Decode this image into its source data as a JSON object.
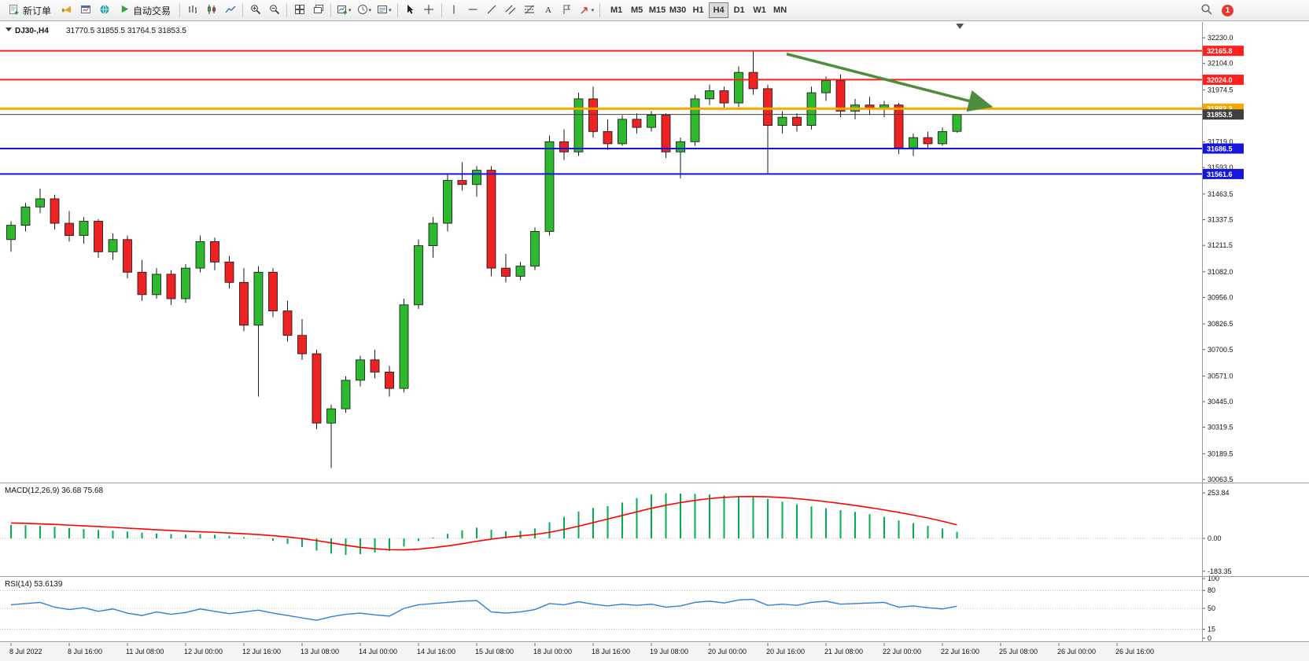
{
  "toolbar": {
    "new_order": "新订单",
    "auto_trading": "自动交易",
    "text_tool_label": "A",
    "timeframes": [
      "M1",
      "M5",
      "M15",
      "M30",
      "H1",
      "H4",
      "D1",
      "W1",
      "MN"
    ],
    "active_timeframe": "H4",
    "notification_count": "1"
  },
  "header": {
    "symbol": "DJ30-,H4",
    "ohlc": "31770.5 31855.5 31764.5 31853.5"
  },
  "chart_data": {
    "type": "candlestick",
    "symbol": "DJ30-",
    "timeframe": "H4",
    "colors": {
      "up": "#2eb82e",
      "down": "#ee2222",
      "wick": "#1a1a1a"
    },
    "y_ticks": [
      "32230.0",
      "32104.0",
      "31974.5",
      "31845.5",
      "31719.0",
      "31593.0",
      "31463.5",
      "31337.5",
      "31211.5",
      "31082.0",
      "30956.0",
      "30826.5",
      "30700.5",
      "30571.0",
      "30445.0",
      "30319.5",
      "30189.5",
      "30063.5"
    ],
    "x_labels": [
      "8 Jul 2022",
      "8 Jul 16:00",
      "11 Jul 08:00",
      "12 Jul 00:00",
      "12 Jul 16:00",
      "13 Jul 08:00",
      "14 Jul 00:00",
      "14 Jul 16:00",
      "15 Jul 08:00",
      "18 Jul 00:00",
      "18 Jul 16:00",
      "19 Jul 08:00",
      "20 Jul 00:00",
      "20 Jul 16:00",
      "21 Jul 08:00",
      "22 Jul 00:00",
      "22 Jul 16:00",
      "25 Jul 08:00",
      "26 Jul 00:00",
      "26 Jul 16:00"
    ],
    "candles_ohlc": [
      [
        31240,
        31330,
        31180,
        31310
      ],
      [
        31310,
        31420,
        31280,
        31400
      ],
      [
        31400,
        31490,
        31370,
        31440
      ],
      [
        31440,
        31460,
        31290,
        31320
      ],
      [
        31320,
        31380,
        31230,
        31260
      ],
      [
        31260,
        31350,
        31220,
        31330
      ],
      [
        31330,
        31340,
        31150,
        31180
      ],
      [
        31180,
        31270,
        31140,
        31240
      ],
      [
        31240,
        31260,
        31050,
        31080
      ],
      [
        31080,
        31140,
        30940,
        30970
      ],
      [
        30970,
        31100,
        30950,
        31070
      ],
      [
        31070,
        31090,
        30920,
        30950
      ],
      [
        30950,
        31120,
        30930,
        31100
      ],
      [
        31100,
        31260,
        31080,
        31230
      ],
      [
        31230,
        31250,
        31090,
        31130
      ],
      [
        31130,
        31160,
        31000,
        31030
      ],
      [
        31030,
        31100,
        30790,
        30820
      ],
      [
        30820,
        31110,
        30470,
        31080
      ],
      [
        31080,
        31100,
        30860,
        30890
      ],
      [
        30890,
        30940,
        30740,
        30770
      ],
      [
        30770,
        30850,
        30650,
        30680
      ],
      [
        30680,
        30700,
        30310,
        30340
      ],
      [
        30340,
        30430,
        30120,
        30410
      ],
      [
        30410,
        30570,
        30390,
        30550
      ],
      [
        30550,
        30670,
        30520,
        30650
      ],
      [
        30650,
        30700,
        30560,
        30590
      ],
      [
        30590,
        30620,
        30470,
        30510
      ],
      [
        30510,
        30950,
        30490,
        30920
      ],
      [
        30920,
        31240,
        30900,
        31210
      ],
      [
        31210,
        31350,
        31150,
        31320
      ],
      [
        31320,
        31560,
        31280,
        31530
      ],
      [
        31530,
        31620,
        31480,
        31510
      ],
      [
        31510,
        31600,
        31450,
        31580
      ],
      [
        31580,
        31600,
        31060,
        31100
      ],
      [
        31100,
        31170,
        31030,
        31060
      ],
      [
        31060,
        31130,
        31040,
        31110
      ],
      [
        31110,
        31300,
        31090,
        31280
      ],
      [
        31280,
        31750,
        31260,
        31720
      ],
      [
        31720,
        31780,
        31630,
        31670
      ],
      [
        31670,
        31960,
        31650,
        31930
      ],
      [
        31930,
        31990,
        31740,
        31770
      ],
      [
        31770,
        31830,
        31680,
        31710
      ],
      [
        31710,
        31850,
        31700,
        31830
      ],
      [
        31830,
        31860,
        31760,
        31790
      ],
      [
        31790,
        31870,
        31770,
        31850
      ],
      [
        31850,
        31860,
        31640,
        31670
      ],
      [
        31670,
        31740,
        31540,
        31720
      ],
      [
        31720,
        31950,
        31700,
        31930
      ],
      [
        31930,
        32000,
        31900,
        31970
      ],
      [
        31970,
        31990,
        31880,
        31910
      ],
      [
        31910,
        32090,
        31890,
        32060
      ],
      [
        32060,
        32165.8,
        31950,
        31980
      ],
      [
        31980,
        32000,
        31560,
        31800
      ],
      [
        31800,
        31870,
        31760,
        31840
      ],
      [
        31840,
        31860,
        31770,
        31800
      ],
      [
        31800,
        31990,
        31780,
        31960
      ],
      [
        31960,
        32040,
        31920,
        32020
      ],
      [
        32020,
        32050,
        31840,
        31870
      ],
      [
        31870,
        31930,
        31830,
        31900
      ],
      [
        31900,
        31940,
        31850,
        31880
      ],
      [
        31880,
        31920,
        31840,
        31900
      ],
      [
        31900,
        31910,
        31660,
        31690
      ],
      [
        31690,
        31760,
        31650,
        31740
      ],
      [
        31740,
        31770,
        31690,
        31710
      ],
      [
        31710,
        31790,
        31700,
        31770
      ],
      [
        31770.5,
        31855.5,
        31764.5,
        31853.5
      ]
    ],
    "hlines": [
      {
        "label": "32165.8",
        "value": 32165.8,
        "color": "#ff1f1f",
        "width": 2
      },
      {
        "label": "32024.0",
        "value": 32024.0,
        "color": "#ff1f1f",
        "width": 2
      },
      {
        "label": "31882.2",
        "value": 31882.2,
        "color": "#f5a800",
        "width": 3
      },
      {
        "label": "31853.5",
        "value": 31853.5,
        "color": "#3f3f3f",
        "width": 1,
        "role": "current-price"
      },
      {
        "label": "31686.5",
        "value": 31686.5,
        "color": "#1515dd",
        "width": 2
      },
      {
        "label": "31561.6",
        "value": 31561.6,
        "color": "#1515dd",
        "width": 2
      }
    ],
    "arrow": {
      "from_bar": 53.3,
      "from_price": 32150,
      "to_bar": 67.3,
      "to_price": 31893,
      "color": "#4e8d3c"
    },
    "macd": {
      "title": "MACD(12,26,9) 36.68 75.68",
      "y_labels": [
        "253.84",
        "0.00",
        "-183.35"
      ],
      "hist_color": "#00b050",
      "signal_color": "#ff0000",
      "histogram": [
        76,
        74,
        70,
        65,
        58,
        52,
        47,
        43,
        38,
        32,
        28,
        24,
        22,
        24,
        20,
        14,
        6,
        -2,
        -14,
        -30,
        -48,
        -68,
        -85,
        -92,
        -88,
        -78,
        -70,
        -45,
        -15,
        5,
        25,
        45,
        60,
        48,
        40,
        42,
        55,
        90,
        120,
        150,
        170,
        180,
        200,
        225,
        245,
        252,
        250,
        248,
        245,
        240,
        235,
        230,
        220,
        205,
        190,
        178,
        168,
        158,
        148,
        135,
        120,
        100,
        85,
        70,
        55,
        36.68
      ],
      "signal": [
        86,
        84,
        81,
        78,
        74,
        70,
        66,
        62,
        57,
        53,
        48,
        44,
        40,
        37,
        34,
        30,
        26,
        21,
        15,
        8,
        -1,
        -12,
        -25,
        -38,
        -50,
        -58,
        -63,
        -64,
        -60,
        -52,
        -42,
        -30,
        -16,
        -4,
        6,
        14,
        22,
        34,
        50,
        68,
        88,
        108,
        128,
        148,
        168,
        185,
        200,
        212,
        222,
        229,
        233,
        234,
        232,
        228,
        222,
        214,
        205,
        195,
        184,
        172,
        159,
        145,
        130,
        114,
        96,
        75.68
      ]
    },
    "rsi": {
      "title": "RSI(14) 53.6139",
      "y_labels": [
        "100",
        "80",
        "50",
        "15",
        "0"
      ],
      "levels": [
        80,
        50,
        15
      ],
      "color": "#2f7ed8",
      "values": [
        56,
        58,
        60,
        52,
        48,
        51,
        45,
        49,
        42,
        38,
        44,
        40,
        43,
        49,
        45,
        41,
        44,
        47,
        42,
        38,
        34,
        30,
        36,
        40,
        42,
        39,
        37,
        50,
        56,
        58,
        60,
        62,
        63,
        44,
        42,
        44,
        48,
        58,
        56,
        61,
        57,
        54,
        57,
        55,
        57,
        52,
        54,
        60,
        62,
        59,
        64,
        65,
        55,
        57,
        55,
        60,
        62,
        57,
        58,
        59,
        60,
        52,
        54,
        51,
        49,
        53.6139
      ]
    }
  }
}
